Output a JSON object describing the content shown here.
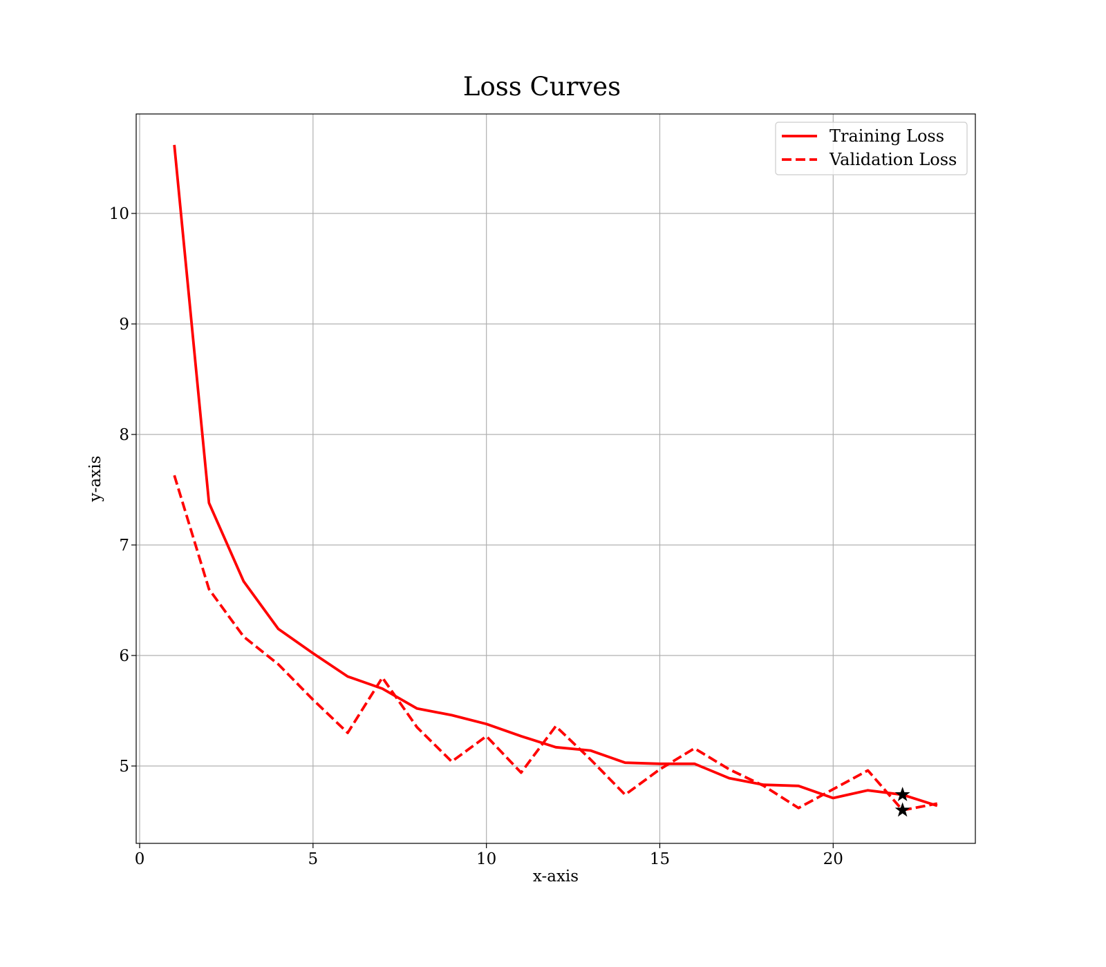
{
  "chart_data": {
    "type": "line",
    "title": "Loss Curves",
    "xlabel": "x-axis",
    "ylabel": "y-axis",
    "xlim": [
      -0.1,
      24.1
    ],
    "ylim": [
      4.3,
      10.9
    ],
    "xticks": [
      0,
      5,
      10,
      15,
      20
    ],
    "yticks": [
      5,
      6,
      7,
      8,
      9,
      10
    ],
    "grid": true,
    "legend_position": "top-right",
    "line_color": "#ff0000",
    "marker_color": "#000000",
    "x": [
      1,
      2,
      3,
      4,
      5,
      6,
      7,
      8,
      9,
      10,
      11,
      12,
      13,
      14,
      15,
      16,
      17,
      18,
      19,
      20,
      21,
      22,
      23
    ],
    "series": [
      {
        "name": "Training Loss",
        "style": "solid",
        "values": [
          10.62,
          7.38,
          6.67,
          6.24,
          6.02,
          5.81,
          5.7,
          5.52,
          5.46,
          5.38,
          5.27,
          5.17,
          5.14,
          5.03,
          5.02,
          5.02,
          4.89,
          4.83,
          4.82,
          4.71,
          4.78,
          4.74,
          4.64
        ],
        "marker": {
          "x": 22,
          "y": 4.74,
          "shape": "star"
        }
      },
      {
        "name": "Validation Loss",
        "style": "dashed",
        "values": [
          7.63,
          6.6,
          6.17,
          5.92,
          5.6,
          5.3,
          5.8,
          5.35,
          5.04,
          5.27,
          4.94,
          5.36,
          5.06,
          4.74,
          4.97,
          5.16,
          4.97,
          4.82,
          4.62,
          4.79,
          4.96,
          4.6,
          4.66
        ],
        "marker": {
          "x": 22,
          "y": 4.6,
          "shape": "star"
        }
      }
    ]
  }
}
